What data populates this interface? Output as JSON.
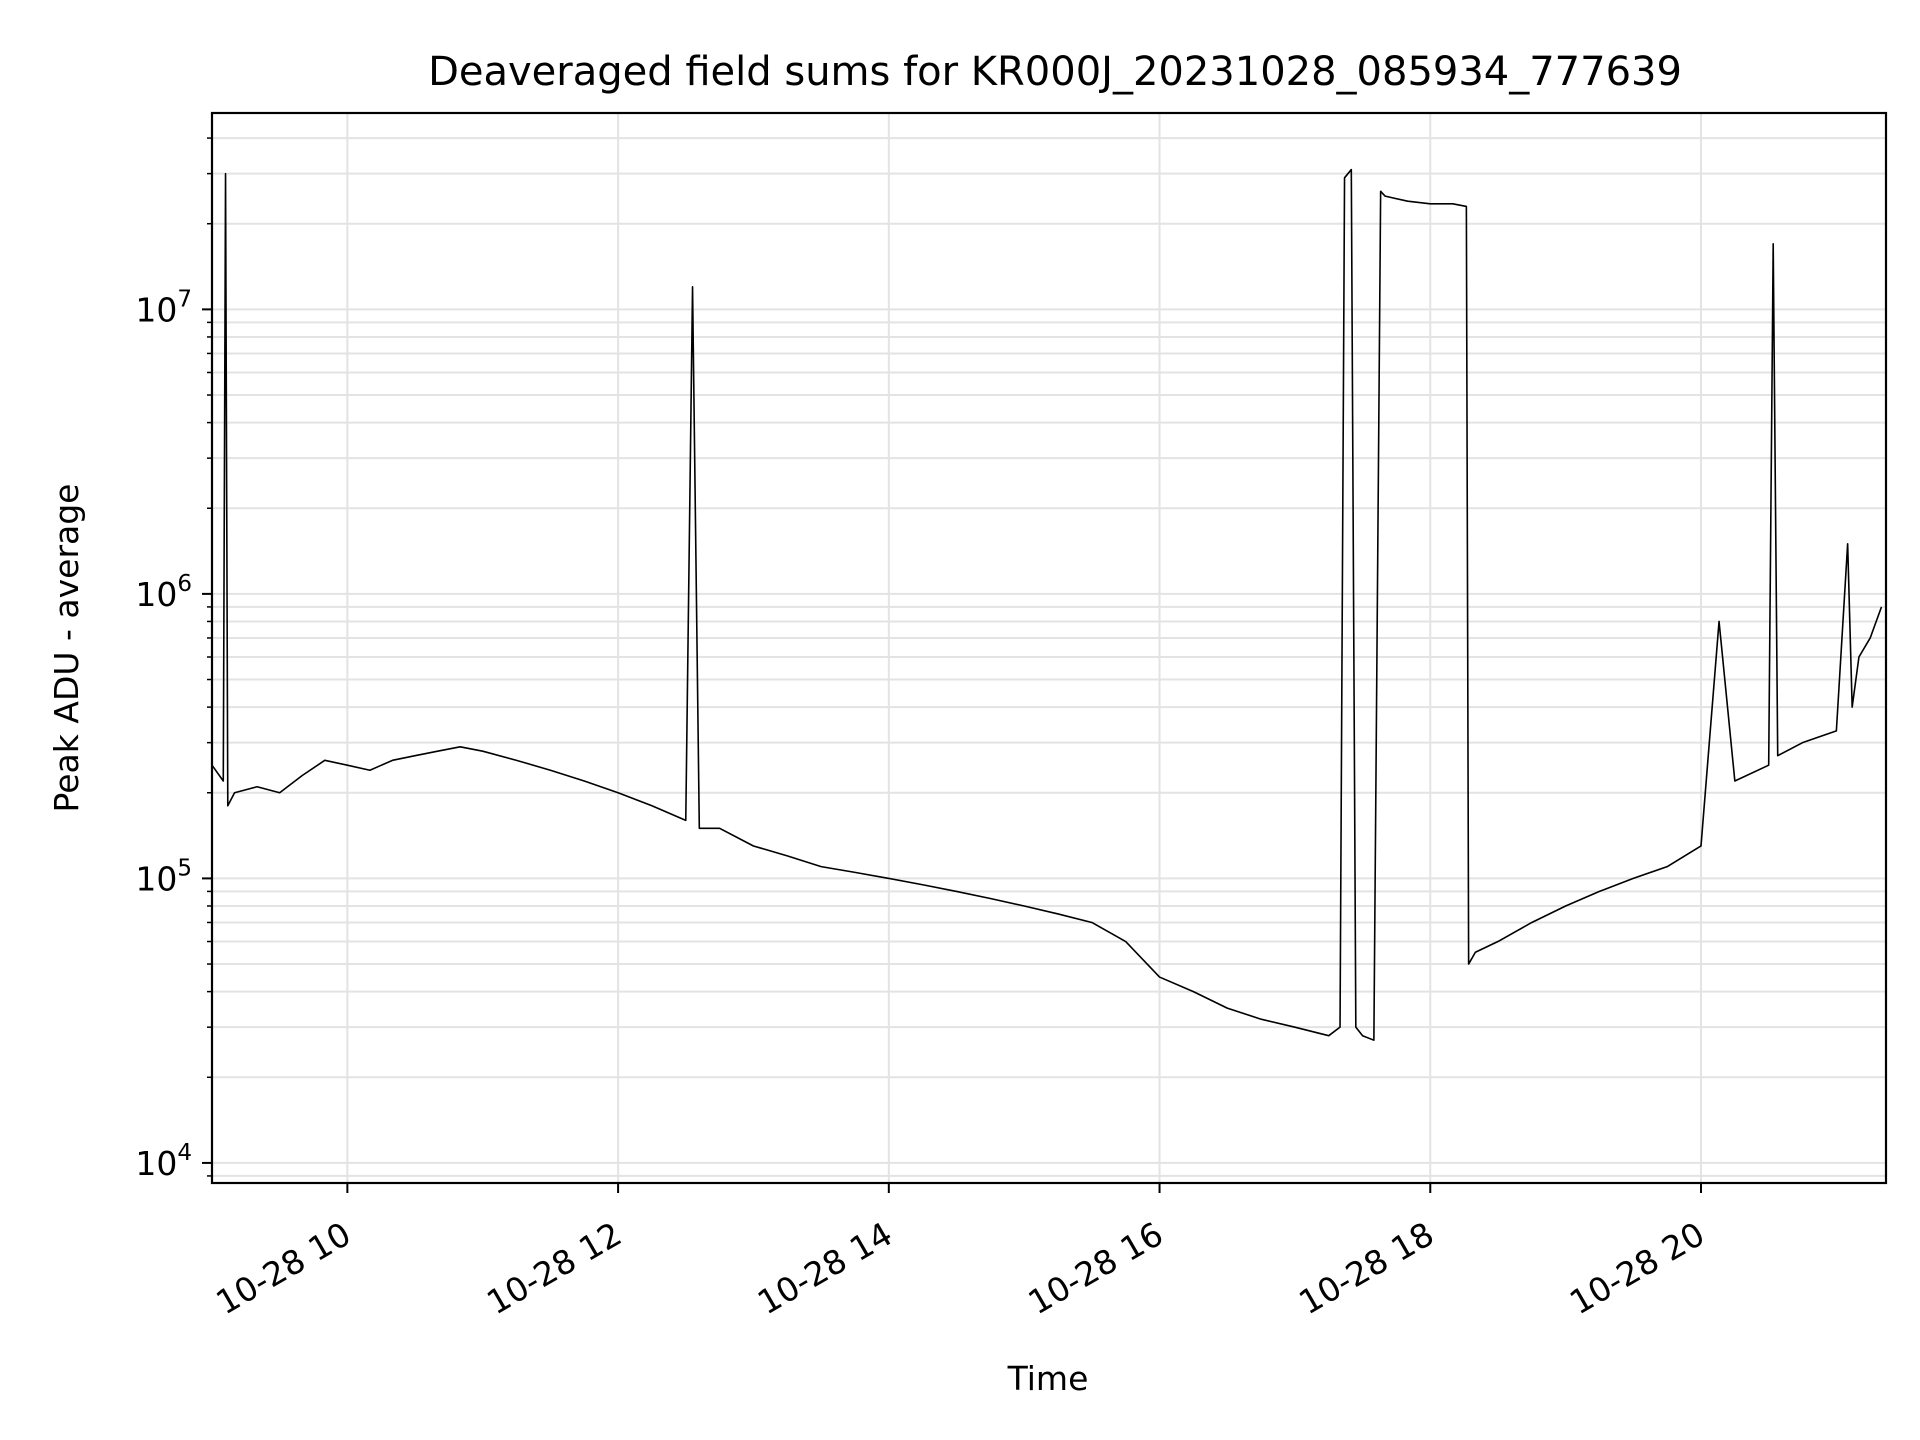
{
  "chart_data": {
    "type": "line",
    "title": "Deaveraged field sums for KR000J_20231028_085934_777639",
    "xlabel": "Time",
    "ylabel": "Peak ADU - average",
    "x_axis": {
      "kind": "datetime",
      "range": [
        "2023-10-28 09:00",
        "2023-10-28 21:22"
      ],
      "ticks": [
        {
          "value": "2023-10-28 10:00",
          "label": "10-28 10"
        },
        {
          "value": "2023-10-28 12:00",
          "label": "10-28 12"
        },
        {
          "value": "2023-10-28 14:00",
          "label": "10-28 14"
        },
        {
          "value": "2023-10-28 16:00",
          "label": "10-28 16"
        },
        {
          "value": "2023-10-28 18:00",
          "label": "10-28 18"
        },
        {
          "value": "2023-10-28 20:00",
          "label": "10-28 20"
        }
      ]
    },
    "y_axis": {
      "scale": "log",
      "range": [
        8500,
        49000000
      ],
      "ticks": [
        {
          "value": 10000,
          "base": "10",
          "exp": "4"
        },
        {
          "value": 100000,
          "base": "10",
          "exp": "5"
        },
        {
          "value": 1000000,
          "base": "10",
          "exp": "6"
        },
        {
          "value": 10000000,
          "base": "10",
          "exp": "7"
        }
      ]
    },
    "grid": true,
    "line_color": "#000000",
    "series": [
      {
        "x": [
          "2023-10-28 09:00",
          "2023-10-28 09:05",
          "2023-10-28 09:06",
          "2023-10-28 09:07",
          "2023-10-28 09:10",
          "2023-10-28 09:20",
          "2023-10-28 09:30",
          "2023-10-28 09:40",
          "2023-10-28 09:50",
          "2023-10-28 10:00",
          "2023-10-28 10:10",
          "2023-10-28 10:20",
          "2023-10-28 10:30",
          "2023-10-28 10:40",
          "2023-10-28 10:50",
          "2023-10-28 11:00",
          "2023-10-28 11:15",
          "2023-10-28 11:30",
          "2023-10-28 11:45",
          "2023-10-28 12:00",
          "2023-10-28 12:15",
          "2023-10-28 12:30",
          "2023-10-28 12:33",
          "2023-10-28 12:36",
          "2023-10-28 12:45",
          "2023-10-28 13:00",
          "2023-10-28 13:15",
          "2023-10-28 13:30",
          "2023-10-28 13:45",
          "2023-10-28 14:00",
          "2023-10-28 14:15",
          "2023-10-28 14:30",
          "2023-10-28 14:45",
          "2023-10-28 15:00",
          "2023-10-28 15:15",
          "2023-10-28 15:30",
          "2023-10-28 15:45",
          "2023-10-28 16:00",
          "2023-10-28 16:15",
          "2023-10-28 16:30",
          "2023-10-28 16:45",
          "2023-10-28 17:00",
          "2023-10-28 17:15",
          "2023-10-28 17:20",
          "2023-10-28 17:22",
          "2023-10-28 17:25",
          "2023-10-28 17:27",
          "2023-10-28 17:30",
          "2023-10-28 17:35",
          "2023-10-28 17:38",
          "2023-10-28 17:40",
          "2023-10-28 17:50",
          "2023-10-28 18:00",
          "2023-10-28 18:10",
          "2023-10-28 18:16",
          "2023-10-28 18:17",
          "2023-10-28 18:20",
          "2023-10-28 18:30",
          "2023-10-28 18:45",
          "2023-10-28 19:00",
          "2023-10-28 19:15",
          "2023-10-28 19:30",
          "2023-10-28 19:45",
          "2023-10-28 20:00",
          "2023-10-28 20:08",
          "2023-10-28 20:15",
          "2023-10-28 20:30",
          "2023-10-28 20:32",
          "2023-10-28 20:34",
          "2023-10-28 20:45",
          "2023-10-28 21:00",
          "2023-10-28 21:05",
          "2023-10-28 21:07",
          "2023-10-28 21:10",
          "2023-10-28 21:15",
          "2023-10-28 21:20"
        ],
        "y": [
          250000,
          220000,
          30000000,
          180000,
          200000,
          210000,
          200000,
          230000,
          260000,
          250000,
          240000,
          260000,
          270000,
          280000,
          290000,
          280000,
          260000,
          240000,
          220000,
          200000,
          180000,
          160000,
          12000000,
          150000,
          150000,
          130000,
          120000,
          110000,
          105000,
          100000,
          95000,
          90000,
          85000,
          80000,
          75000,
          70000,
          60000,
          45000,
          40000,
          35000,
          32000,
          30000,
          28000,
          30000,
          29000000,
          31000000,
          30000,
          28000,
          27000,
          26000000,
          25000000,
          24000000,
          23500000,
          23500000,
          23000000,
          50000,
          55000,
          60000,
          70000,
          80000,
          90000,
          100000,
          110000,
          130000,
          800000,
          220000,
          250000,
          17000000,
          270000,
          300000,
          330000,
          1500000,
          400000,
          600000,
          700000,
          900000
        ]
      }
    ]
  }
}
